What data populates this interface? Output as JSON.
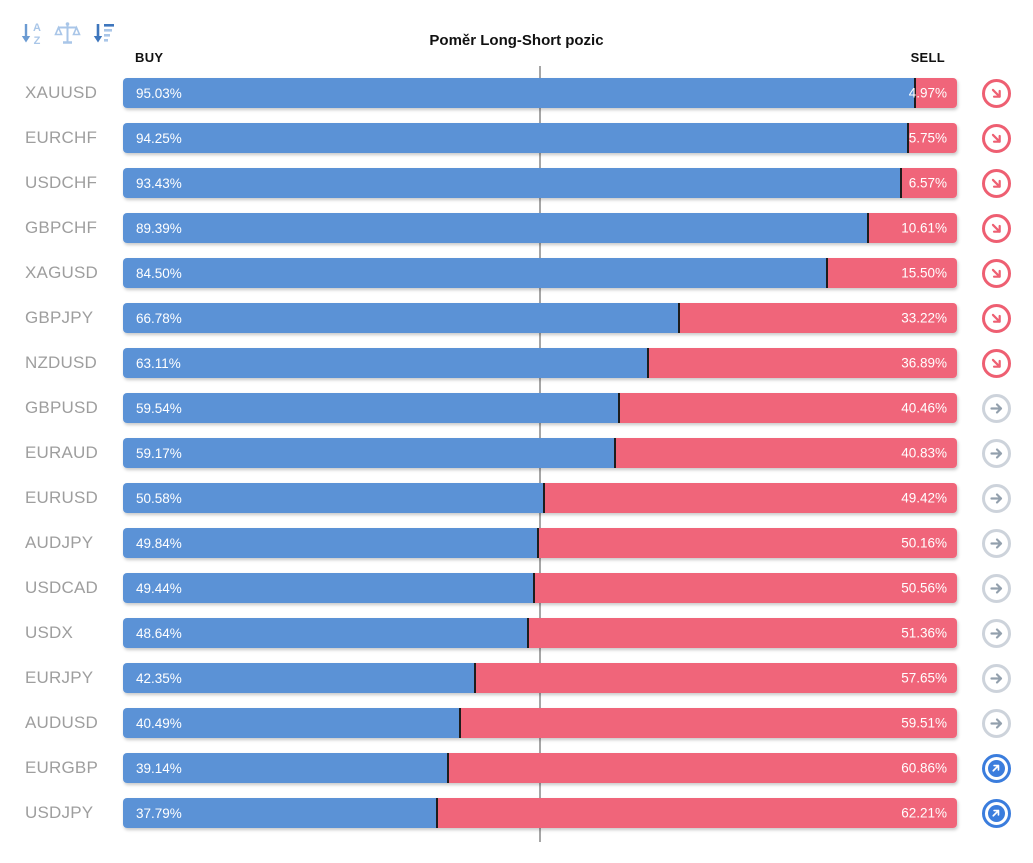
{
  "toolbar": {
    "icons": [
      "sort-alpha-descending-icon",
      "balance-scale-icon",
      "sort-amount-descending-icon"
    ]
  },
  "header": {
    "buy_label": "BUY",
    "sell_label": "SELL"
  },
  "colors": {
    "buy_bar": "#5b92d6",
    "sell_bar": "#f0657a",
    "bar_divider": "#1d1d1d",
    "instrument_label": "#9e9e9e",
    "center_line": "#a6a6a6",
    "trend_down_icon": "#ee5f72",
    "trend_right_ring": "#cdd3db",
    "trend_right_arrow": "#93a0ad",
    "trend_up_icon": "#3b7ddd",
    "toolbar_icon_dark": "#3e76bd",
    "toolbar_icon_light": "#a9c6e8"
  },
  "chart_data": {
    "type": "bar",
    "variant": "horizontal-diverging-stacked",
    "title": "Poměr Long-Short pozic",
    "axis_labels": {
      "left": "BUY",
      "right": "SELL"
    },
    "unit": "%",
    "x_range": [
      0,
      100
    ],
    "center_line_pct": 50,
    "grid": false,
    "legend_position": "none",
    "categories": [
      "XAUUSD",
      "EURCHF",
      "USDCHF",
      "GBPCHF",
      "XAGUSD",
      "GBPJPY",
      "NZDUSD",
      "GBPUSD",
      "EURAUD",
      "EURUSD",
      "AUDJPY",
      "USDCAD",
      "USDX",
      "EURJPY",
      "AUDUSD",
      "EURGBP",
      "USDJPY"
    ],
    "series": [
      {
        "name": "BUY",
        "color": "#5b92d6",
        "values": [
          95.03,
          94.25,
          93.43,
          89.39,
          84.5,
          66.78,
          63.11,
          59.54,
          59.17,
          50.58,
          49.84,
          49.44,
          48.64,
          42.35,
          40.49,
          39.14,
          37.79
        ]
      },
      {
        "name": "SELL",
        "color": "#f0657a",
        "values": [
          4.97,
          5.75,
          6.57,
          10.61,
          15.5,
          33.22,
          36.89,
          40.46,
          40.83,
          49.42,
          50.16,
          50.56,
          51.36,
          57.65,
          59.51,
          60.86,
          62.21
        ]
      }
    ],
    "trend_icons": [
      "down",
      "down",
      "down",
      "down",
      "down",
      "down",
      "down",
      "right",
      "right",
      "right",
      "right",
      "right",
      "right",
      "right",
      "right",
      "up",
      "up"
    ]
  }
}
